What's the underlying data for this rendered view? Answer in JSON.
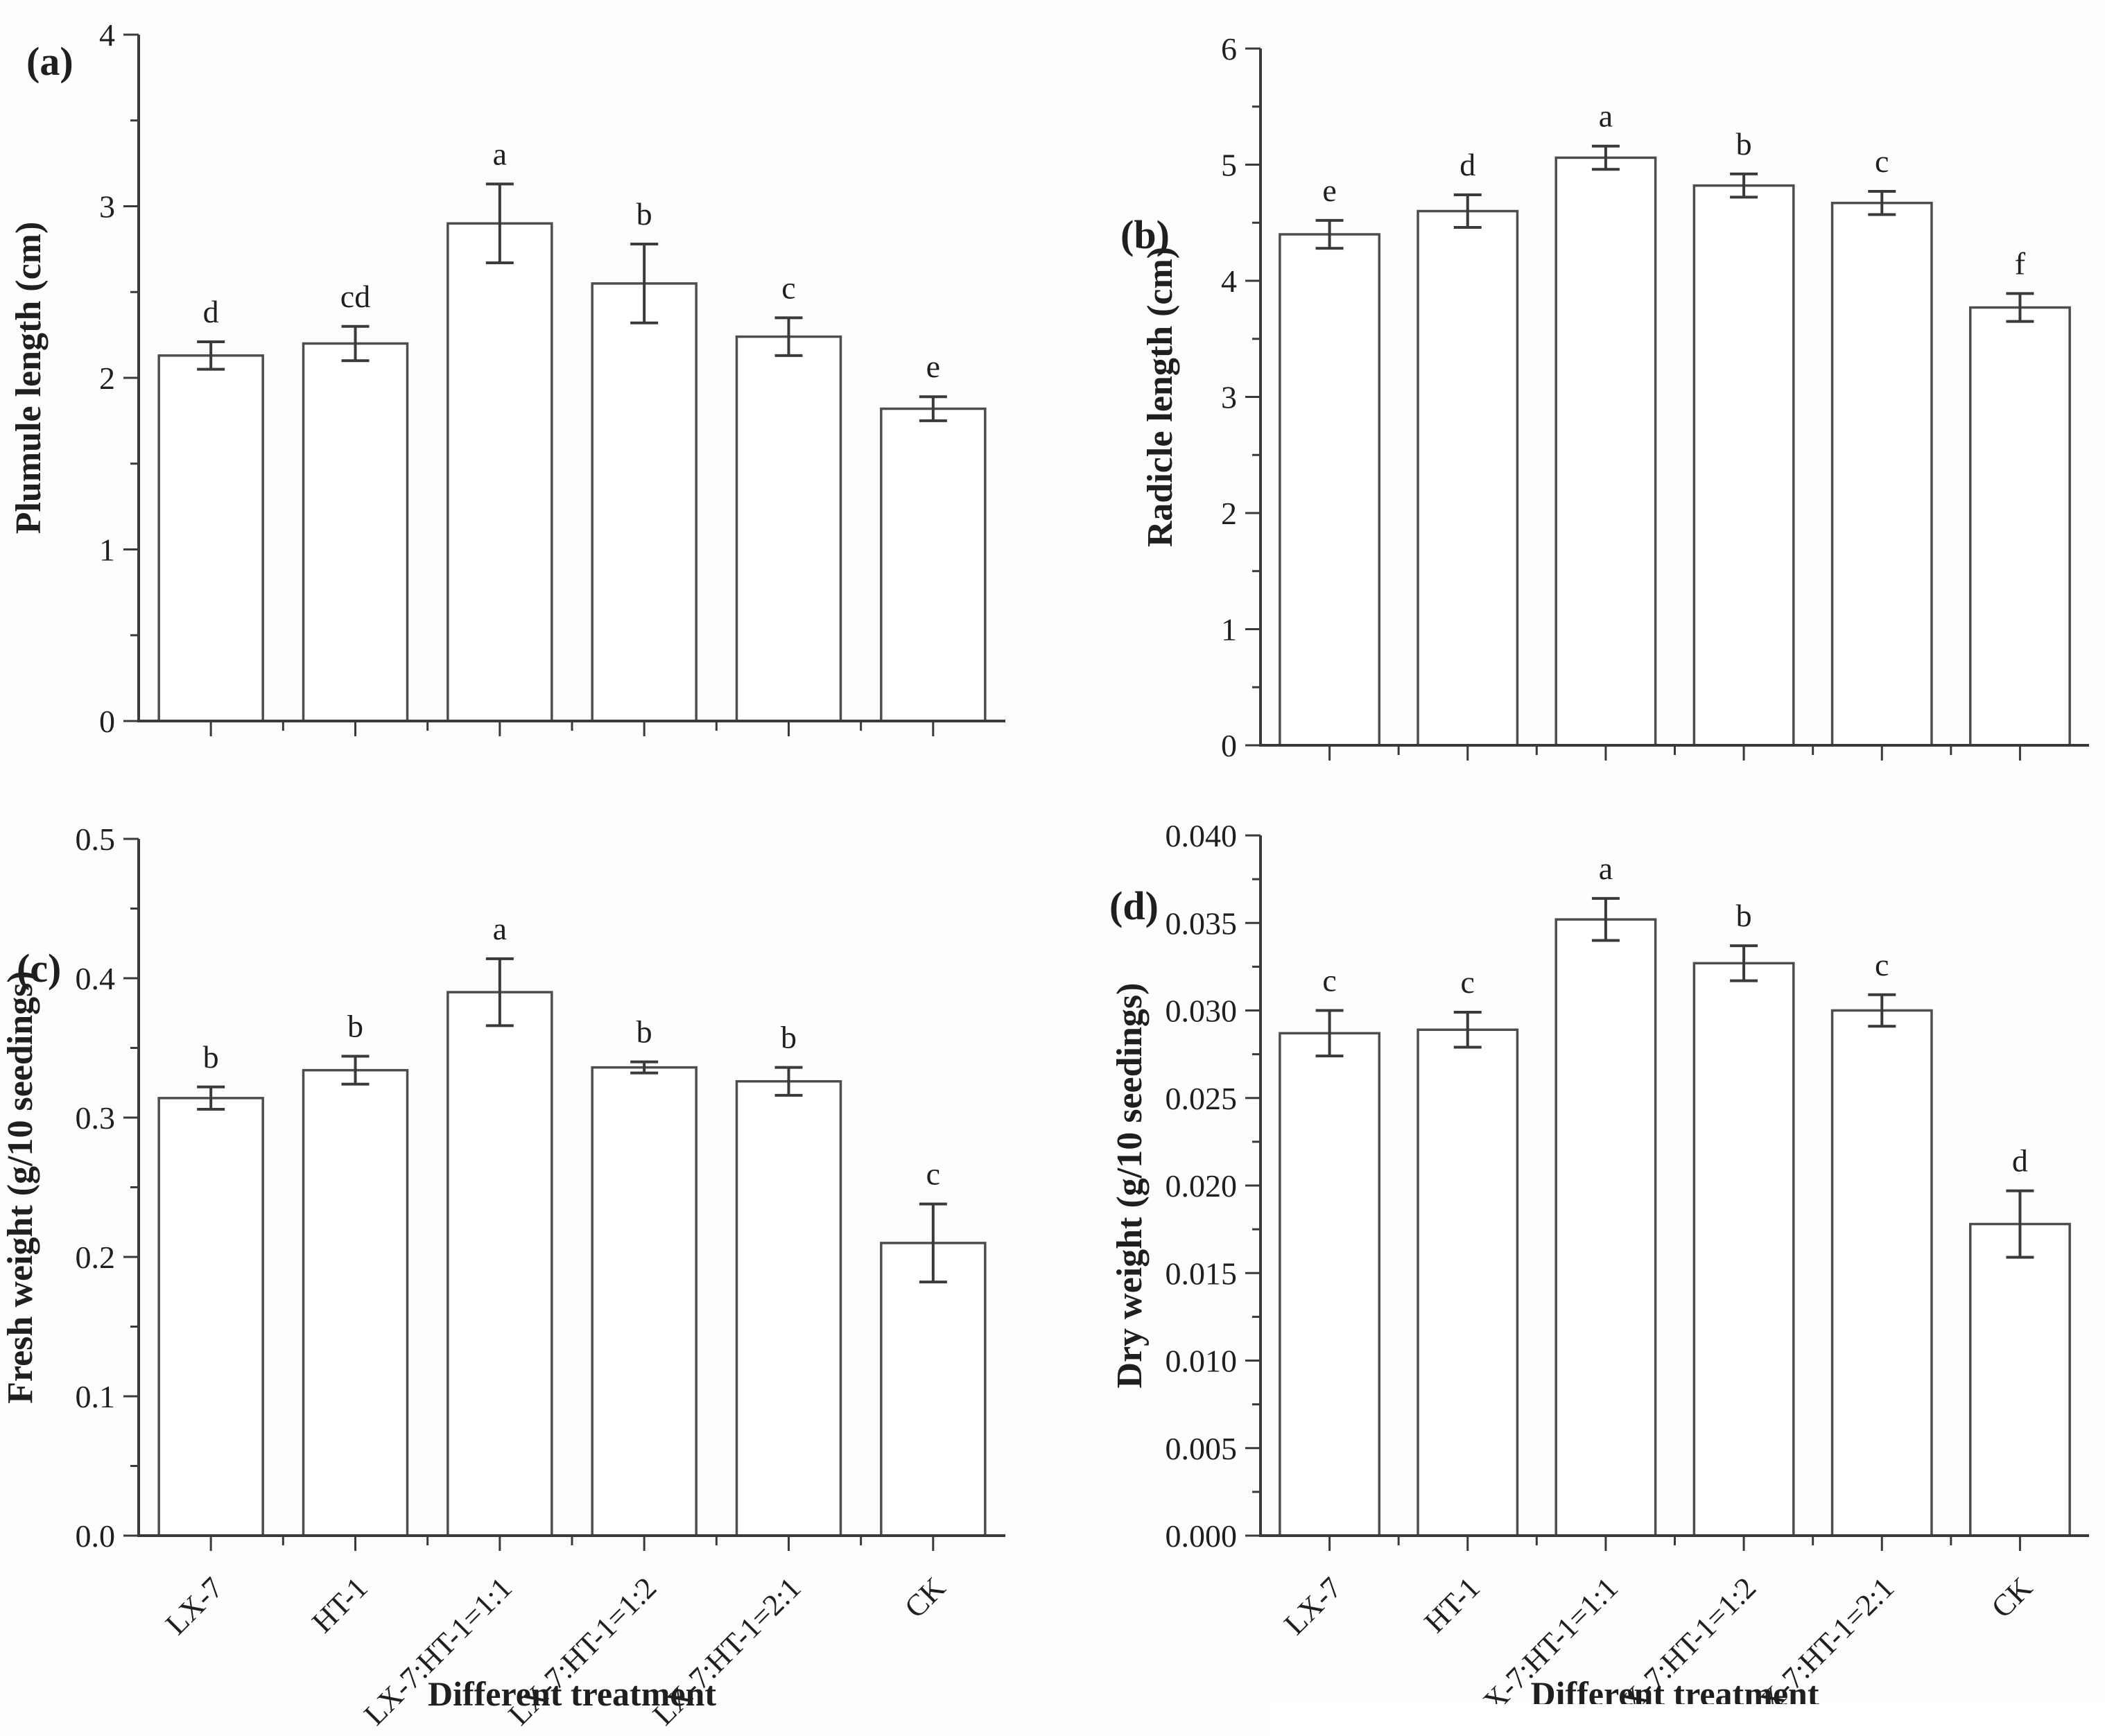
{
  "figure": {
    "xlabel": "Different treatment",
    "categories": [
      "LX-7",
      "HT-1",
      "LX-7:HT-1=1:1",
      "LX-7:HT-1=1:2",
      "LX-7:HT-1=2:1",
      "CK"
    ]
  },
  "chart_data": [
    {
      "type": "bar",
      "panel_letter": "(a)",
      "ylabel": "Plumule length (cm)",
      "xlabel": "",
      "categories": [
        "LX-7",
        "HT-1",
        "LX-7:HT-1=1:1",
        "LX-7:HT-1=1:2",
        "LX-7:HT-1=2:1",
        "CK"
      ],
      "values": [
        2.13,
        2.2,
        2.9,
        2.55,
        2.24,
        1.82
      ],
      "errors": [
        0.08,
        0.1,
        0.23,
        0.23,
        0.11,
        0.07
      ],
      "sig_letters": [
        "d",
        "cd",
        "a",
        "b",
        "c",
        "e"
      ],
      "ylim": [
        0,
        4
      ],
      "ymajor": 1,
      "yminor": 0.5,
      "ydecimals": 0,
      "show_x_labels": false,
      "grid": false,
      "bar_fill": "#ffffff",
      "bar_stroke": "#4d4d4d"
    },
    {
      "type": "bar",
      "panel_letter": "(b)",
      "ylabel": "Radicle length (cm)",
      "xlabel": "",
      "categories": [
        "LX-7",
        "HT-1",
        "LX-7:HT-1=1:1",
        "LX-7:HT-1=1:2",
        "LX-7:HT-1=2:1",
        "CK"
      ],
      "values": [
        4.4,
        4.6,
        5.06,
        4.82,
        4.67,
        3.77
      ],
      "errors": [
        0.12,
        0.14,
        0.1,
        0.1,
        0.1,
        0.12
      ],
      "sig_letters": [
        "e",
        "d",
        "a",
        "b",
        "c",
        "f"
      ],
      "ylim": [
        0,
        6
      ],
      "ymajor": 1,
      "yminor": 0.5,
      "ydecimals": 0,
      "show_x_labels": false,
      "grid": false,
      "bar_fill": "#ffffff",
      "bar_stroke": "#4d4d4d"
    },
    {
      "type": "bar",
      "panel_letter": "(c)",
      "ylabel": "Fresh weight (g/10 seedings)",
      "xlabel": "Different treatment",
      "categories": [
        "LX-7",
        "HT-1",
        "LX-7:HT-1=1:1",
        "LX-7:HT-1=1:2",
        "LX-7:HT-1=2:1",
        "CK"
      ],
      "values": [
        0.314,
        0.334,
        0.39,
        0.336,
        0.326,
        0.21
      ],
      "errors": [
        0.008,
        0.01,
        0.024,
        0.004,
        0.01,
        0.028
      ],
      "sig_letters": [
        "b",
        "b",
        "a",
        "b",
        "b",
        "c"
      ],
      "ylim": [
        0,
        0.5
      ],
      "ymajor": 0.1,
      "yminor": 0.05,
      "ydecimals": 1,
      "show_x_labels": true,
      "grid": false,
      "bar_fill": "#ffffff",
      "bar_stroke": "#4d4d4d"
    },
    {
      "type": "bar",
      "panel_letter": "(d)",
      "ylabel": "Dry weight (g/10 seedings)",
      "xlabel": "Different treatment",
      "categories": [
        "LX-7",
        "HT-1",
        "LX-7:HT-1=1:1",
        "LX-7:HT-1=1:2",
        "LX-7:HT-1=2:1",
        "CK"
      ],
      "values": [
        0.0287,
        0.0289,
        0.0352,
        0.0327,
        0.03,
        0.0178
      ],
      "errors": [
        0.0013,
        0.001,
        0.0012,
        0.001,
        0.0009,
        0.0019
      ],
      "sig_letters": [
        "c",
        "c",
        "a",
        "b",
        "c",
        "d"
      ],
      "ylim": [
        0,
        0.04
      ],
      "ymajor": 0.005,
      "yminor": 0.0025,
      "ydecimals": 3,
      "show_x_labels": true,
      "grid": false,
      "bar_fill": "#ffffff",
      "bar_stroke": "#4d4d4d"
    }
  ],
  "colors": {
    "axis": "#3a3a3a",
    "text": "#1f1f1f",
    "error_bar": "#3a3a3a",
    "background": "#fdfdfd"
  }
}
